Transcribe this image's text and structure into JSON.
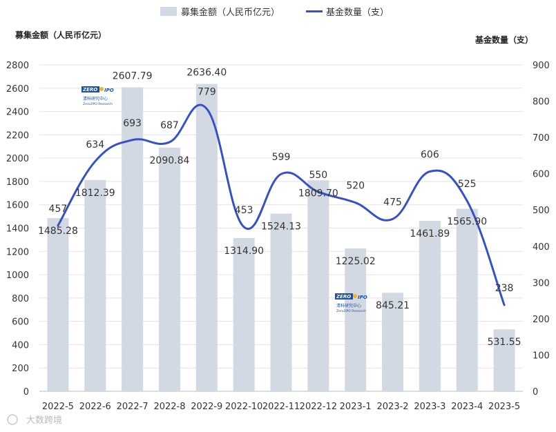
{
  "chart_data": {
    "type": "bar",
    "categories": [
      "2022-5",
      "2022-6",
      "2022-7",
      "2022-8",
      "2022-9",
      "2022-10",
      "2022-11",
      "2022-12",
      "2023-1",
      "2023-2",
      "2023-3",
      "2023-4",
      "2023-5"
    ],
    "series": [
      {
        "name": "募集金额（人民币亿元）",
        "type": "bar",
        "axis": "left",
        "color": "#d3d9e2",
        "values": [
          1485.28,
          1812.39,
          2607.79,
          2090.84,
          2636.4,
          1314.9,
          1524.13,
          1809.7,
          1225.02,
          845.21,
          1461.89,
          1565.9,
          531.55
        ],
        "labels": [
          "1485.28",
          "1812.39",
          "2607.79",
          "2090.84",
          "2636.40",
          "1314.90",
          "1524.13",
          "1809.70",
          "1225.02",
          "845.21",
          "1461.89",
          "1565.90",
          "531.55"
        ]
      },
      {
        "name": "基金数量（支）",
        "type": "line",
        "axis": "right",
        "color": "#3550c8",
        "values": [
          457,
          634,
          693,
          687,
          779,
          453,
          599,
          550,
          520,
          475,
          606,
          525,
          238
        ],
        "labels": [
          "457",
          "634",
          "693",
          "687",
          "779",
          "453",
          "599",
          "550",
          "520",
          "475",
          "606",
          "525",
          "238"
        ]
      }
    ],
    "left_axis": {
      "title": "募集金额（人民币亿元）",
      "ylim": [
        0,
        2800
      ],
      "ticks": [
        0,
        200,
        400,
        600,
        800,
        1000,
        1200,
        1400,
        1600,
        1800,
        2000,
        2200,
        2400,
        2600,
        2800
      ]
    },
    "right_axis": {
      "title": "基金数量（支）",
      "ylim": [
        0,
        900
      ],
      "ticks": [
        0,
        100,
        200,
        300,
        400,
        500,
        600,
        700,
        800,
        900
      ]
    },
    "legend_position": "top-center",
    "grid": true,
    "logo": {
      "brand": "ZERO IPO",
      "name_cn": "清科研究中心",
      "name_en": "Zero2IPO Research"
    },
    "watermark": "大数跨境"
  }
}
